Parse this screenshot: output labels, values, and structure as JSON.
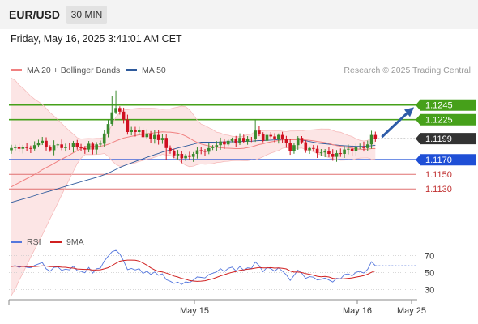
{
  "header": {
    "pair": "EUR/USD",
    "timeframe": "30 MIN",
    "datetime": "Friday, May 16, 2025 3:41:01 AM CET"
  },
  "legend": {
    "ma20": "MA 20 + Bollinger Bands",
    "ma50": "MA 50",
    "credit": "Research © 2025 Trading Central"
  },
  "colors": {
    "bull": "#3a8a2e",
    "bear": "#d01020",
    "ma20": "#f08080",
    "band": "#fbe0e0",
    "ma50": "#2e5a9c",
    "green_line": "#46a01a",
    "blue_line": "#1f4fd6",
    "red_line": "#e07070",
    "price_tag": "#333333",
    "rsi": "#5577dd",
    "rsi_ma": "#d02020"
  },
  "chart_data": [
    {
      "type": "candlestick",
      "title": "EUR/USD",
      "timeframe": "30 MIN",
      "ylim": [
        1.1078,
        1.1278
      ],
      "x_tick_labels": [
        "May 15",
        "May 16",
        "May 25"
      ],
      "levels": [
        {
          "value": 1.1245,
          "label": "1.1245",
          "color": "#46a01a",
          "style": "tag"
        },
        {
          "value": 1.1225,
          "label": "1.1225",
          "color": "#46a01a",
          "style": "tag"
        },
        {
          "value": 1.1199,
          "label": "1.1199",
          "color": "#333333",
          "style": "price"
        },
        {
          "value": 1.117,
          "label": "1.1170",
          "color": "#1f4fd6",
          "style": "tag"
        },
        {
          "value": 1.115,
          "label": "1.1150",
          "color": "#e07070",
          "style": "text"
        },
        {
          "value": 1.113,
          "label": "1.1130",
          "color": "#e07070",
          "style": "text"
        }
      ],
      "closes": [
        1.1186,
        1.1188,
        1.1185,
        1.1188,
        1.1186,
        1.1185,
        1.119,
        1.1193,
        1.1196,
        1.1187,
        1.1183,
        1.119,
        1.1191,
        1.1186,
        1.1188,
        1.1187,
        1.1193,
        1.1187,
        1.1186,
        1.1184,
        1.1192,
        1.1184,
        1.1191,
        1.1192,
        1.1206,
        1.1219,
        1.1235,
        1.1241,
        1.1236,
        1.1225,
        1.1208,
        1.1211,
        1.1208,
        1.1211,
        1.1201,
        1.1206,
        1.1199,
        1.1204,
        1.1197,
        1.12,
        1.1186,
        1.1182,
        1.1176,
        1.1178,
        1.1172,
        1.1176,
        1.1174,
        1.1178,
        1.1183,
        1.1182,
        1.1181,
        1.1186,
        1.1188,
        1.119,
        1.1195,
        1.1191,
        1.1196,
        1.1198,
        1.1193,
        1.12,
        1.1195,
        1.1199,
        1.1198,
        1.121,
        1.1205,
        1.1196,
        1.1204,
        1.1202,
        1.1198,
        1.1204,
        1.1199,
        1.1193,
        1.1182,
        1.119,
        1.12,
        1.1194,
        1.1183,
        1.1186,
        1.1185,
        1.1179,
        1.118,
        1.1182,
        1.1178,
        1.1174,
        1.1179,
        1.1178,
        1.1184,
        1.1185,
        1.1182,
        1.1187,
        1.1188,
        1.1186,
        1.1191,
        1.1204,
        1.1199
      ],
      "ma20_start": 1.113,
      "ma50_start": 1.111,
      "rsi_ylim": [
        20,
        80
      ],
      "rsi_levels": [
        70,
        50,
        30
      ],
      "projection": {
        "from": 1.1199,
        "to": 1.1242
      }
    }
  ],
  "rsi_legend": {
    "rsi": "RSI",
    "ma": "9MA"
  }
}
